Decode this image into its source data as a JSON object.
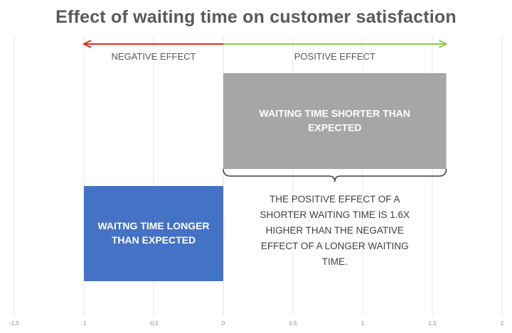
{
  "chart_data": {
    "type": "bar",
    "title": "Effect of waiting time on customer satisfaction",
    "xlim": [
      -1.5,
      2
    ],
    "x_ticks": [
      "-1,5",
      "-1",
      "-0,5",
      "0",
      "0,5",
      "1",
      "1,5",
      "2"
    ],
    "grid": true,
    "series": [
      {
        "label": "WAITING TIME SHORTER THAN EXPECTED",
        "start": 0,
        "end": 1.6,
        "color": "#a6a6a6"
      },
      {
        "label": "WAITNG TIME LONGER THAN EXPECTED",
        "start": -1,
        "end": 0,
        "color": "#4472c4"
      }
    ],
    "arrows": [
      {
        "label": "NEGATIVE EFFECT",
        "from": 0,
        "to": -1,
        "color": "#e02b20"
      },
      {
        "label": "POSITIVE EFFECT",
        "from": 0,
        "to": 1.6,
        "color": "#8ccc4f"
      }
    ],
    "annotation": "THE POSITIVE EFFECT OF A SHORTER WAITING TIME IS 1.6X HIGHER THAN THE NEGATIVE EFFECT OF A LONGER WAITING TIME."
  }
}
